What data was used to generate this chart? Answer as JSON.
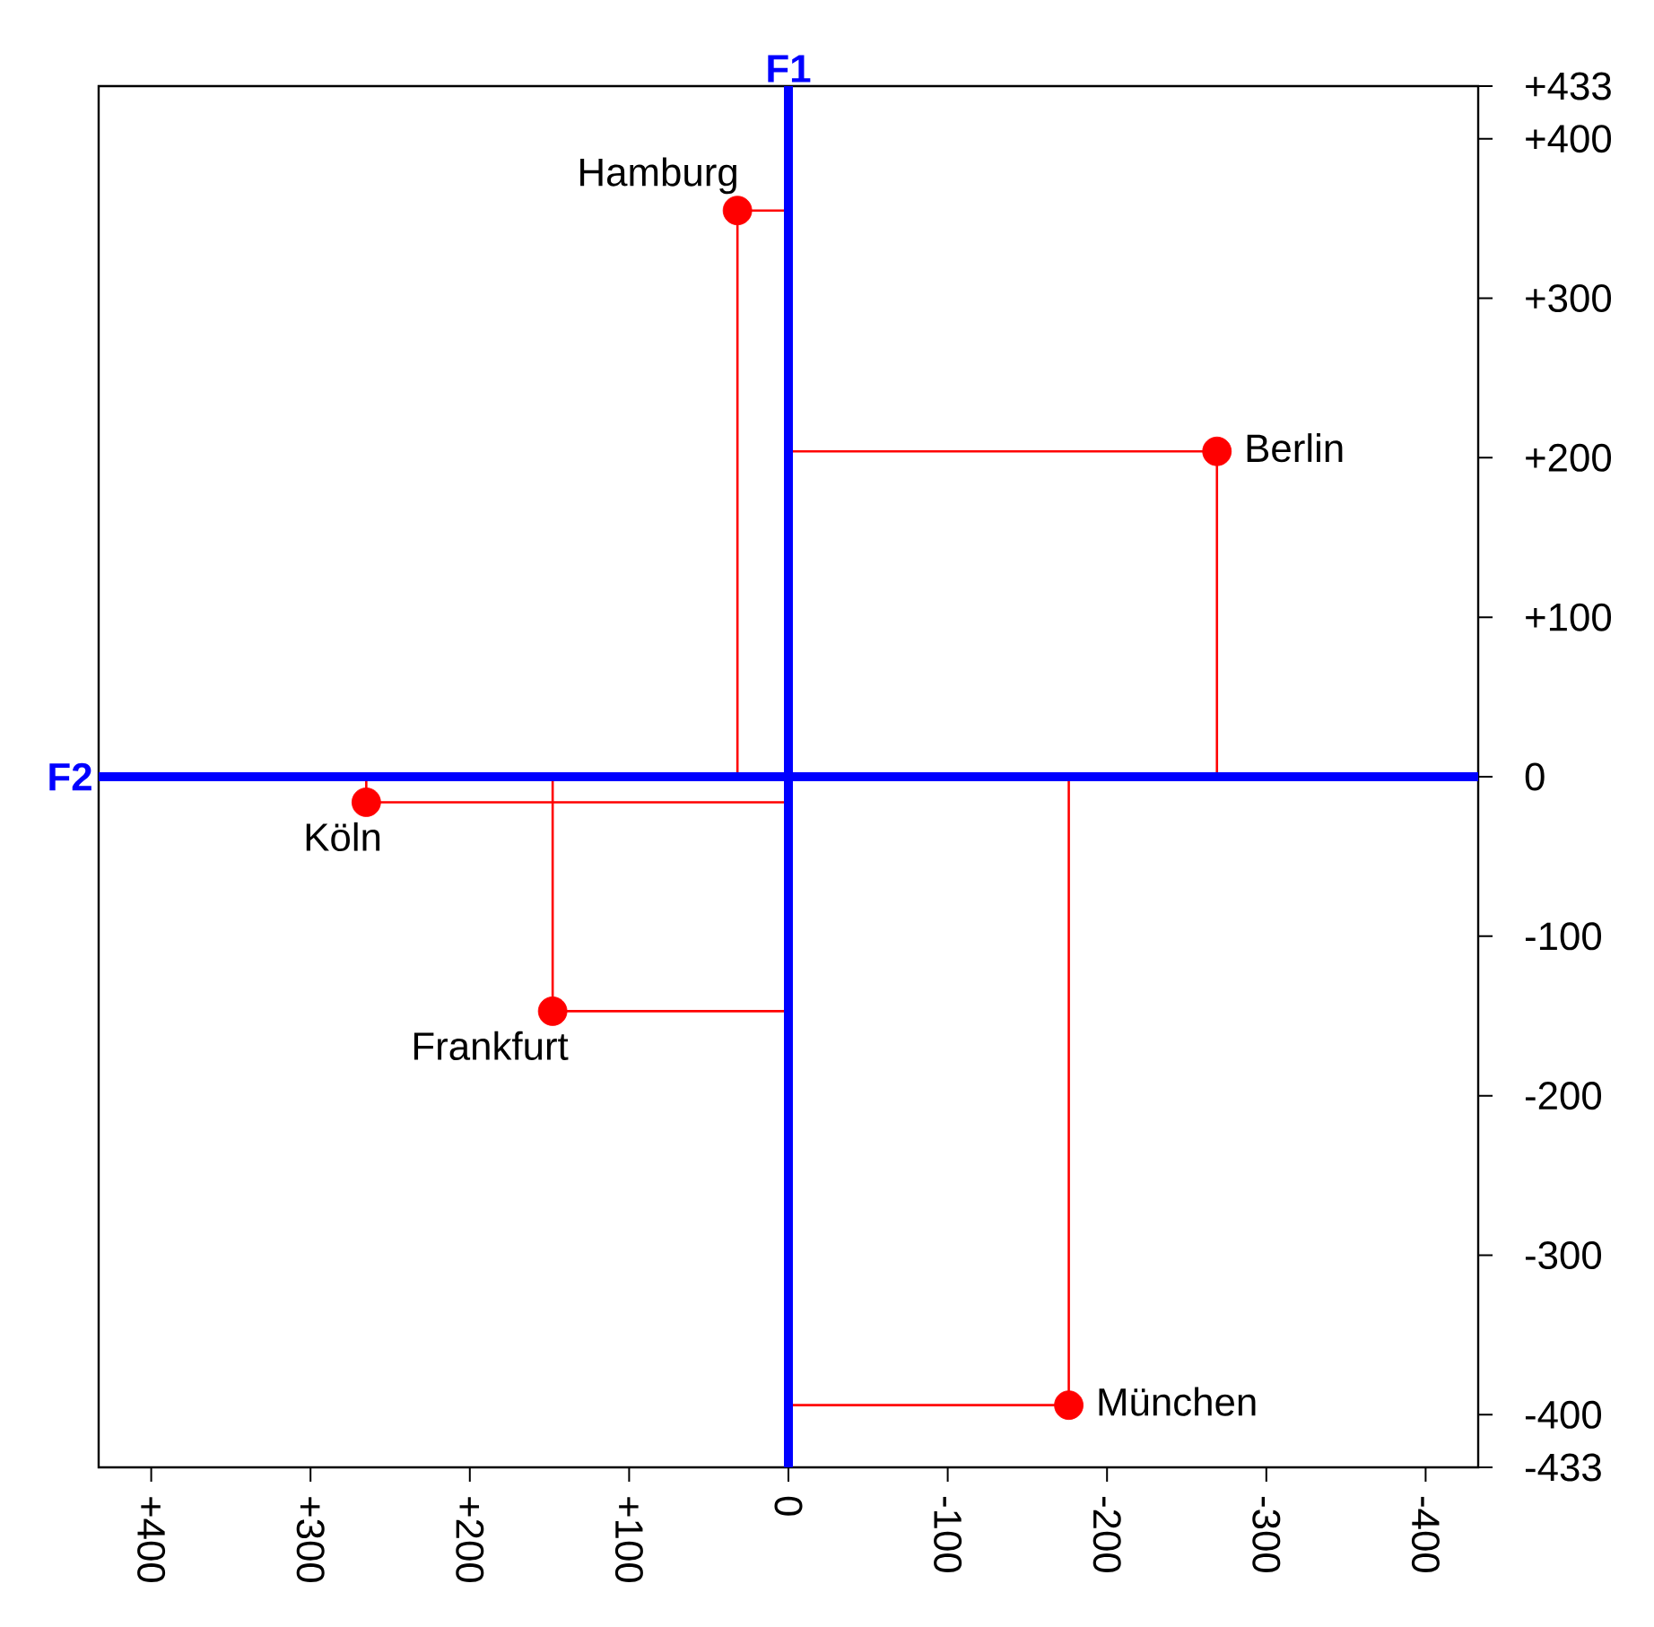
{
  "chart_data": {
    "type": "scatter",
    "x": [
      32,
      -269,
      265,
      148,
      -176
    ],
    "values": [
      355,
      204,
      -16,
      -147,
      -394
    ],
    "color": "#ff0000",
    "marker": "circle",
    "xlim": [
      433,
      -433
    ],
    "ylim": [
      -433,
      433
    ],
    "xticks": [
      {
        "value": 400,
        "label": "+400"
      },
      {
        "value": 300,
        "label": "+300"
      },
      {
        "value": 200,
        "label": "+200"
      },
      {
        "value": 100,
        "label": "+100"
      },
      0,
      -100,
      -200,
      -300,
      -400
    ],
    "yticks": [
      {
        "value": 433,
        "label": "+433"
      },
      {
        "value": 400,
        "label": "+400"
      },
      {
        "value": 300,
        "label": "+300"
      },
      {
        "value": 200,
        "label": "+200"
      },
      {
        "value": 100,
        "label": "+100"
      },
      0,
      -100,
      -200,
      -300,
      -400,
      -433
    ],
    "ref_lines": [
      {
        "axis": "x",
        "value": 0,
        "label": "F1",
        "color": "#0000ff"
      },
      {
        "axis": "y",
        "value": 0,
        "label": "F2",
        "color": "#0000ff"
      }
    ],
    "annotations": [
      {
        "text": "Hamburg",
        "x": 32,
        "y": 355
      },
      {
        "text": "Berlin",
        "x": -269,
        "y": 204
      },
      {
        "text": "Köln",
        "x": 265,
        "y": -16
      },
      {
        "text": "Frankfurt",
        "x": 148,
        "y": -147
      },
      {
        "text": "München",
        "x": -176,
        "y": -394
      }
    ]
  }
}
